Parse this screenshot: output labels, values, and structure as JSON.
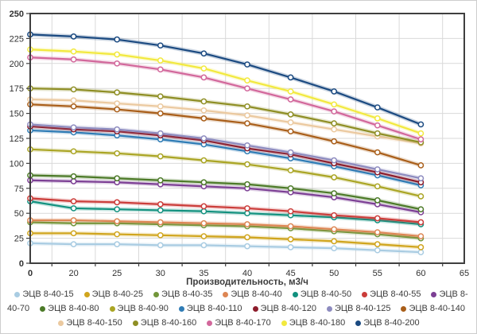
{
  "chart_data": {
    "type": "line",
    "title": "",
    "xlabel": "Производительность, м3/ч",
    "ylabel": "",
    "x_categories": [
      "0",
      "20",
      "25",
      "30",
      "35",
      "40",
      "45",
      "50",
      "55",
      "60",
      "65"
    ],
    "data_x": [
      0,
      20,
      25,
      30,
      35,
      40,
      45,
      50,
      55,
      60
    ],
    "ylim": [
      0,
      250
    ],
    "y_step": 25,
    "grid": true,
    "legend_position": "bottom",
    "marker": "circle-white-filled",
    "axis_color": "#3f3f3f",
    "grid_color": "#d9d9d9",
    "series": [
      {
        "name": "ЭЦВ 8-40-15",
        "color": "#a9cce2",
        "values": [
          20,
          19,
          19,
          18,
          18,
          17,
          16,
          15,
          13,
          11
        ]
      },
      {
        "name": "ЭЦВ 8-40-25",
        "color": "#d0a51d",
        "values": [
          30,
          30,
          29,
          28,
          27,
          26,
          24,
          22,
          19,
          16
        ]
      },
      {
        "name": "ЭЦВ 8-40-35",
        "color": "#72963a",
        "values": [
          41,
          40,
          40,
          39,
          38,
          37,
          35,
          32,
          29,
          25
        ]
      },
      {
        "name": "ЭЦВ 8-40-40",
        "color": "#dd8654",
        "values": [
          43,
          43,
          42,
          41,
          40,
          39,
          37,
          34,
          31,
          27
        ]
      },
      {
        "name": "ЭЦВ 8-40-50",
        "color": "#12917f",
        "values": [
          62,
          55,
          54,
          53,
          52,
          50,
          48,
          46,
          43,
          39
        ]
      },
      {
        "name": "ЭЦВ 8-40-55",
        "color": "#cb3d3a",
        "values": [
          65,
          62,
          61,
          59,
          57,
          55,
          52,
          48,
          45,
          41
        ]
      },
      {
        "name": "ЭЦВ 8-40-70",
        "color": "#7c3f94",
        "values": [
          83,
          82,
          81,
          79,
          77,
          75,
          71,
          66,
          59,
          51
        ]
      },
      {
        "name": "ЭЦВ 8-40-80",
        "color": "#4c7a28",
        "values": [
          88,
          87,
          85,
          83,
          81,
          79,
          75,
          70,
          63,
          54
        ]
      },
      {
        "name": "ЭЦВ 8-40-90",
        "color": "#aaa524",
        "values": [
          114,
          112,
          110,
          107,
          103,
          99,
          93,
          86,
          77,
          67
        ]
      },
      {
        "name": "ЭЦВ 8-40-110",
        "color": "#2f7cb5",
        "values": [
          133,
          131,
          128,
          124,
          119,
          112,
          105,
          97,
          88,
          78
        ]
      },
      {
        "name": "ЭЦВ 8-40-120",
        "color": "#8d1c2b",
        "values": [
          137,
          134,
          132,
          128,
          123,
          115,
          109,
          100,
          91,
          81
        ]
      },
      {
        "name": "ЭЦВ 8-40-125",
        "color": "#8d8bbf",
        "values": [
          139,
          136,
          134,
          130,
          125,
          118,
          111,
          103,
          94,
          85
        ]
      },
      {
        "name": "ЭЦВ 8-40-140",
        "color": "#a95e19",
        "values": [
          159,
          157,
          154,
          150,
          145,
          140,
          132,
          122,
          111,
          98
        ]
      },
      {
        "name": "ЭЦВ 8-40-150",
        "color": "#ebc99f",
        "values": [
          164,
          163,
          160,
          157,
          153,
          148,
          141,
          134,
          127,
          120
        ]
      },
      {
        "name": "ЭЦВ 8-40-160",
        "color": "#8e8e24",
        "values": [
          175,
          174,
          171,
          167,
          162,
          157,
          149,
          140,
          130,
          121
        ]
      },
      {
        "name": "ЭЦВ 8-40-170",
        "color": "#d2679b",
        "values": [
          206,
          204,
          200,
          194,
          186,
          175,
          164,
          152,
          138,
          124
        ]
      },
      {
        "name": "ЭЦВ 8-40-180",
        "color": "#f2e93e",
        "values": [
          214,
          212,
          209,
          203,
          195,
          183,
          172,
          159,
          145,
          130
        ]
      },
      {
        "name": "ЭЦВ 8-40-200",
        "color": "#1b4a81",
        "values": [
          229,
          227,
          224,
          218,
          210,
          199,
          186,
          172,
          156,
          139
        ]
      }
    ]
  }
}
